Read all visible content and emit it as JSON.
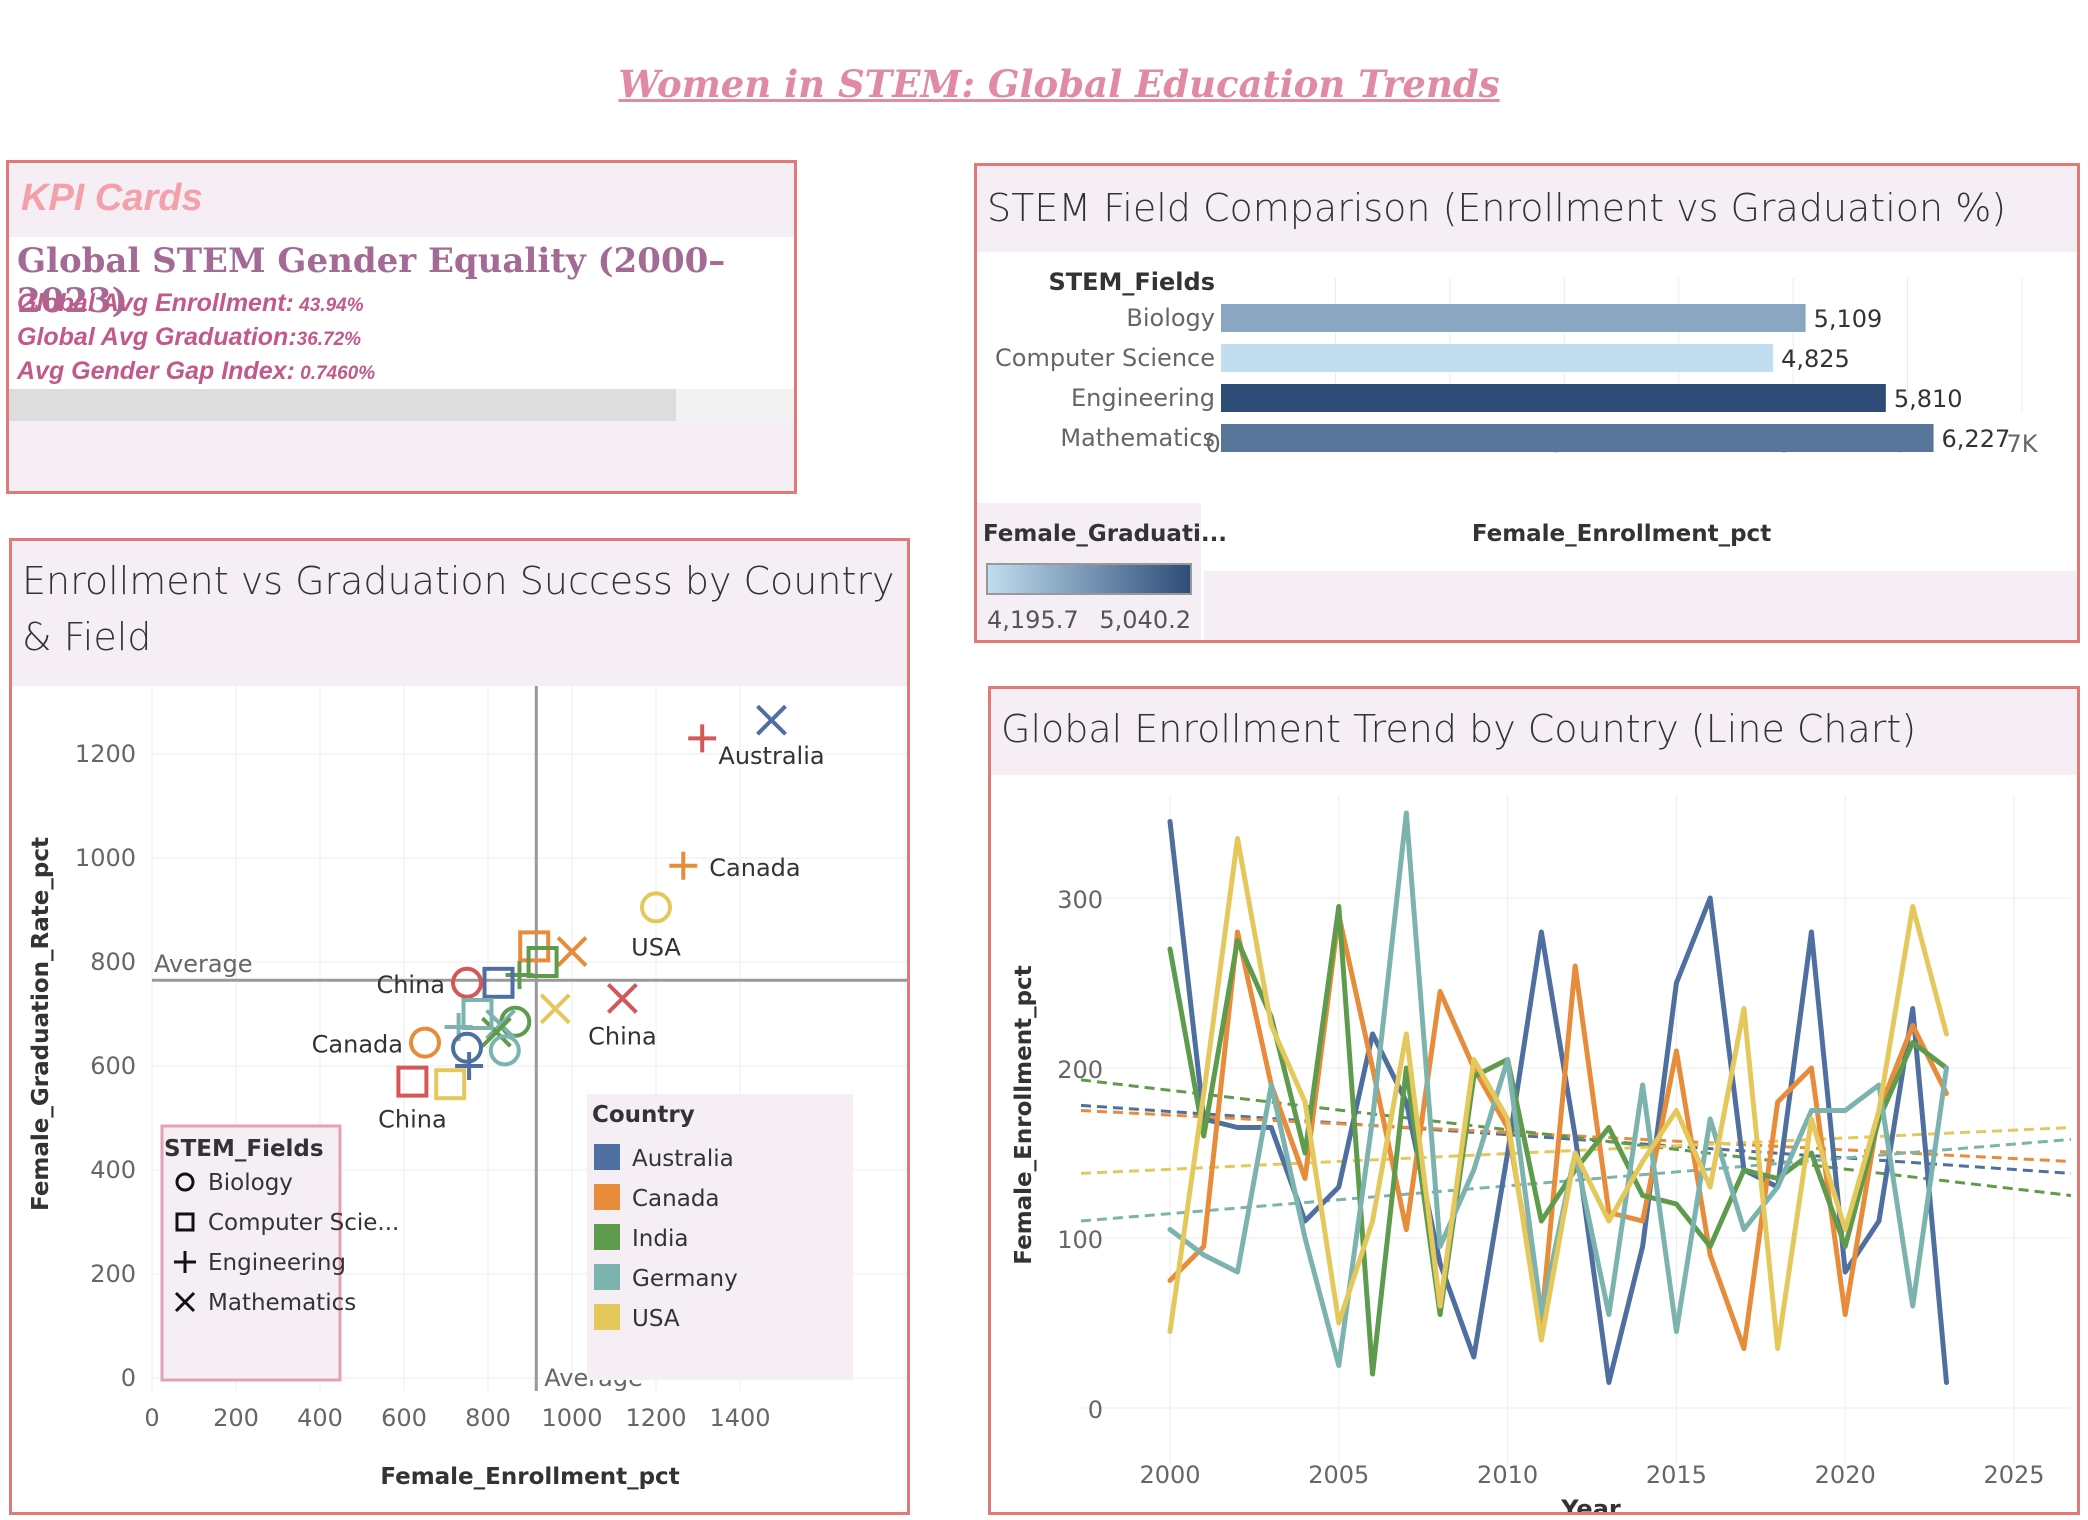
{
  "dashboard": {
    "title": "Women in STEM: Global Education Trends"
  },
  "kpi": {
    "header": "KPI Cards",
    "subtitle": "Global STEM Gender Equality (2000–2023)",
    "enroll_label": "Global Avg Enrollment:",
    "enroll_value": " 43.94%",
    "grad_label": "Global Avg Graduation:",
    "grad_value": "36.72%",
    "gap_label": "Avg Gender Gap Index:",
    "gap_value": " 0.7460%"
  },
  "bar_panel": {
    "title": "STEM Field Comparison (Enrollment vs Graduation %)"
  },
  "scatter_panel": {
    "title_line1": "Enrollment vs Graduation Success by Country",
    "title_line2": "& Field"
  },
  "line_panel": {
    "title": "Global Enrollment Trend by Country (Line Chart)"
  },
  "colors": {
    "Australia": "#4e6fa0",
    "Canada": "#e68c3a",
    "India": "#5e9b4c",
    "Germany": "#7db3ae",
    "USA": "#e5c85c",
    "China": "#d55757",
    "panel_border": "#e07a78",
    "panel_head": "#f5eff5"
  },
  "chart_data": [
    {
      "id": "bar",
      "type": "bar",
      "orientation": "horizontal",
      "header": "STEM_Fields",
      "categories": [
        "Biology",
        "Computer Science",
        "Engineering",
        "Mathematics"
      ],
      "values": [
        5109,
        4825,
        5810,
        6227
      ],
      "value_labels": [
        "5,109",
        "4,825",
        "5,810",
        "6,227"
      ],
      "color_values": [
        4520,
        4195.7,
        5040.2,
        4800
      ],
      "xlabel": "Female_Enrollment_pct",
      "xlim": [
        0,
        7000
      ],
      "ticks": [
        "0K",
        "1K",
        "2K",
        "3K",
        "4K",
        "5K",
        "6K",
        "7K"
      ],
      "legend": {
        "title": "Female_Graduati...",
        "min_label": "4,195.7",
        "max_label": "5,040.2",
        "placement": "bottom-left"
      }
    },
    {
      "id": "scatter",
      "type": "scatter",
      "xlabel": "Female_Enrollment_pct",
      "ylabel": "Female_Graduation_Rate_pct",
      "xlim": [
        0,
        1600
      ],
      "ylim": [
        0,
        1300
      ],
      "x_ticks": [
        "0",
        "200",
        "400",
        "600",
        "800",
        "1000",
        "1200",
        "1400"
      ],
      "y_ticks": [
        "0",
        "200",
        "400",
        "600",
        "800",
        "1000",
        "1200"
      ],
      "ref_lines": {
        "x": 915,
        "y": 765,
        "x_label": "Average",
        "y_label": "Average"
      },
      "shape_legend": {
        "title": "STEM_Fields",
        "items": [
          "Biology",
          "Computer Scie...",
          "Engineering",
          "Mathematics"
        ]
      },
      "color_legend": {
        "title": "Country",
        "items": [
          "Australia",
          "Canada",
          "India",
          "Germany",
          "USA"
        ]
      },
      "points": [
        {
          "country": "Australia",
          "field": "Mathematics",
          "x": 1475,
          "y": 1265,
          "label": "Australia"
        },
        {
          "country": "China",
          "field": "Engineering",
          "x": 1310,
          "y": 1230,
          "label": ""
        },
        {
          "country": "Canada",
          "field": "Engineering",
          "x": 1265,
          "y": 985,
          "label": "Canada"
        },
        {
          "country": "USA",
          "field": "Biology",
          "x": 1200,
          "y": 905,
          "label": "USA"
        },
        {
          "country": "Canada",
          "field": "Mathematics",
          "x": 1000,
          "y": 820,
          "label": ""
        },
        {
          "country": "China",
          "field": "Mathematics",
          "x": 1120,
          "y": 730,
          "label": "China"
        },
        {
          "country": "Canada",
          "field": "Computer Science",
          "x": 910,
          "y": 830,
          "label": ""
        },
        {
          "country": "India",
          "field": "Computer Science",
          "x": 930,
          "y": 800,
          "label": ""
        },
        {
          "country": "India",
          "field": "Engineering",
          "x": 875,
          "y": 775,
          "label": ""
        },
        {
          "country": "Australia",
          "field": "Computer Science",
          "x": 825,
          "y": 760,
          "label": ""
        },
        {
          "country": "China",
          "field": "Biology",
          "x": 750,
          "y": 760,
          "label": "China"
        },
        {
          "country": "USA",
          "field": "Mathematics",
          "x": 960,
          "y": 710,
          "label": ""
        },
        {
          "country": "India",
          "field": "Biology",
          "x": 865,
          "y": 685,
          "label": ""
        },
        {
          "country": "Germany",
          "field": "Mathematics",
          "x": 830,
          "y": 680,
          "label": ""
        },
        {
          "country": "India",
          "field": "Mathematics",
          "x": 820,
          "y": 665,
          "label": ""
        },
        {
          "country": "Germany",
          "field": "Computer Science",
          "x": 775,
          "y": 700,
          "label": ""
        },
        {
          "country": "Germany",
          "field": "Engineering",
          "x": 730,
          "y": 675,
          "label": ""
        },
        {
          "country": "Canada",
          "field": "Biology",
          "x": 650,
          "y": 645,
          "label": "Canada"
        },
        {
          "country": "Australia",
          "field": "Biology",
          "x": 750,
          "y": 635,
          "label": ""
        },
        {
          "country": "Germany",
          "field": "Biology",
          "x": 840,
          "y": 630,
          "label": ""
        },
        {
          "country": "Australia",
          "field": "Engineering",
          "x": 755,
          "y": 600,
          "label": ""
        },
        {
          "country": "USA",
          "field": "Computer Science",
          "x": 710,
          "y": 565,
          "label": ""
        },
        {
          "country": "China",
          "field": "Computer Science",
          "x": 620,
          "y": 570,
          "label": "China"
        }
      ]
    },
    {
      "id": "line",
      "type": "line",
      "xlabel": "Year",
      "ylabel": "Female_Enrollment_pct",
      "xlim": [
        1998,
        2025
      ],
      "ylim": [
        0,
        340
      ],
      "x_ticks": [
        "2000",
        "2005",
        "2010",
        "2015",
        "2020",
        "2025"
      ],
      "y_ticks": [
        "0",
        "100",
        "200",
        "300"
      ],
      "x": [
        2000,
        2001,
        2002,
        2003,
        2004,
        2005,
        2006,
        2007,
        2008,
        2009,
        2010,
        2011,
        2012,
        2013,
        2014,
        2015,
        2016,
        2017,
        2018,
        2019,
        2020,
        2021,
        2022,
        2023
      ],
      "series": [
        {
          "name": "Australia",
          "values": [
            345,
            170,
            165,
            165,
            110,
            130,
            220,
            180,
            85,
            30,
            150,
            280,
            160,
            15,
            95,
            250,
            300,
            140,
            130,
            280,
            80,
            110,
            235,
            15
          ],
          "trend": [
            178,
            138
          ]
        },
        {
          "name": "Canada",
          "values": [
            75,
            95,
            280,
            190,
            135,
            290,
            200,
            105,
            245,
            200,
            165,
            50,
            260,
            115,
            110,
            210,
            90,
            35,
            180,
            200,
            55,
            175,
            225,
            185
          ],
          "trend": [
            175,
            145
          ]
        },
        {
          "name": "India",
          "values": [
            270,
            160,
            275,
            230,
            150,
            295,
            20,
            200,
            55,
            195,
            205,
            110,
            140,
            165,
            125,
            120,
            95,
            140,
            135,
            150,
            95,
            170,
            215,
            200
          ],
          "trend": [
            193,
            125
          ]
        },
        {
          "name": "Germany",
          "values": [
            105,
            90,
            80,
            190,
            100,
            25,
            170,
            350,
            95,
            140,
            205,
            55,
            150,
            55,
            190,
            45,
            170,
            105,
            130,
            175,
            175,
            190,
            60,
            200
          ],
          "trend": [
            110,
            158
          ]
        },
        {
          "name": "USA",
          "values": [
            45,
            185,
            335,
            225,
            180,
            50,
            110,
            220,
            60,
            205,
            170,
            40,
            150,
            110,
            145,
            175,
            130,
            235,
            35,
            170,
            105,
            175,
            295,
            220
          ],
          "trend": [
            138,
            165
          ]
        }
      ]
    }
  ]
}
